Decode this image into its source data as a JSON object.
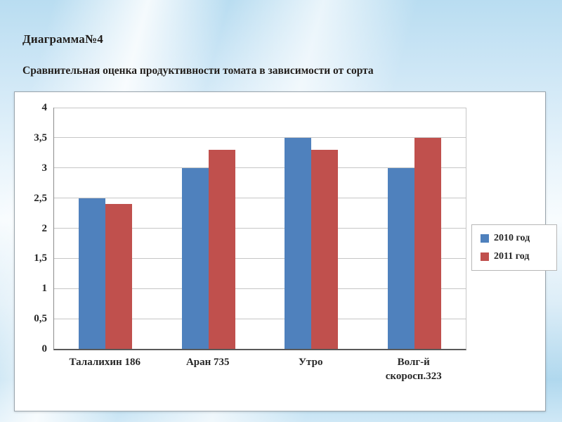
{
  "slide": {
    "title": "Диаграмма№4",
    "subtitle": "Сравнительная оценка продуктивности томата в зависимости от сорта"
  },
  "chart_data": {
    "type": "bar",
    "title": "",
    "categories": [
      "Талалихин 186",
      "Аран 735",
      "Утро",
      "Волг-й скоросп.323"
    ],
    "series": [
      {
        "name": "2010 год",
        "color": "#4f81bd",
        "values": [
          2.5,
          3.0,
          3.5,
          3.0
        ]
      },
      {
        "name": "2011 год",
        "color": "#c0504d",
        "values": [
          2.4,
          3.3,
          3.3,
          3.5
        ]
      }
    ],
    "xlabel": "",
    "ylabel": "",
    "ylim": [
      0,
      4
    ],
    "ytick_step": 0.5,
    "ytick_labels": [
      "0",
      "0,5",
      "1",
      "1,5",
      "2",
      "2,5",
      "3",
      "3,5",
      "4"
    ],
    "grid": true,
    "legend_position": "right"
  }
}
